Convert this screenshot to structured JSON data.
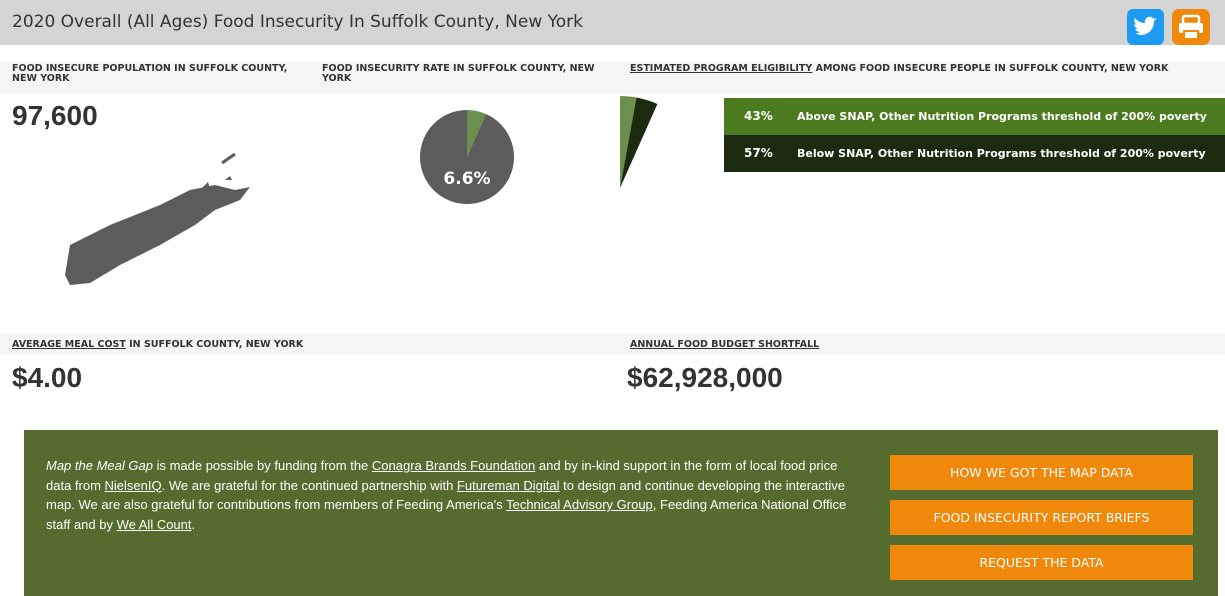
{
  "header": {
    "title": "2020 Overall (All Ages) Food Insecurity In Suffolk County, New York"
  },
  "population": {
    "label": "FOOD INSECURE POPULATION IN SUFFOLK COUNTY, NEW YORK",
    "value": "97,600"
  },
  "rate": {
    "label": "FOOD INSECURITY RATE IN SUFFOLK COUNTY, NEW YORK",
    "value": 6.6,
    "value_label": "6.6%",
    "color": "#6d8f4e",
    "rest_color": "#5c5c5c"
  },
  "eligibility": {
    "label_link": "ESTIMATED PROGRAM ELIGIBILITY",
    "label_rest": " AMONG FOOD INSECURE PEOPLE IN SUFFOLK COUNTY, NEW YORK",
    "rows": [
      {
        "value": 43,
        "value_label": "43%",
        "text": "Above SNAP, Other Nutrition Programs threshold of 200% poverty",
        "color": "#4b7a1f",
        "slice_color": "#6d8f4e"
      },
      {
        "value": 57,
        "value_label": "57%",
        "text": "Below SNAP, Other Nutrition Programs threshold of 200% poverty",
        "color": "#1c2a10",
        "slice_color": "#1c2a10"
      }
    ]
  },
  "meal_cost": {
    "label_link": "AVERAGE MEAL COST",
    "label_rest": " IN SUFFOLK COUNTY, NEW YORK",
    "value": "$4.00"
  },
  "shortfall": {
    "label_link": "ANNUAL FOOD BUDGET SHORTFALL",
    "value": "$62,928,000"
  },
  "footer": {
    "paragraph": [
      {
        "text": "Map the Meal Gap",
        "style": "italic"
      },
      {
        "text": " is made possible by funding from the ",
        "style": "plain"
      },
      {
        "text": "Conagra Brands Foundation",
        "style": "link"
      },
      {
        "text": " and by in-kind support in the form of local food price data from ",
        "style": "plain"
      },
      {
        "text": "NielsenIQ",
        "style": "link"
      },
      {
        "text": ". We are grateful for the continued partnership with ",
        "style": "plain"
      },
      {
        "text": "Futureman Digital",
        "style": "link"
      },
      {
        "text": " to design and continue developing the interactive map. We are also grateful for contributions from members of Feeding America's ",
        "style": "plain"
      },
      {
        "text": "Technical Advisory Group",
        "style": "link"
      },
      {
        "text": ", Feeding America National Office staff and by ",
        "style": "plain"
      },
      {
        "text": "We All Count",
        "style": "link"
      },
      {
        "text": ".",
        "style": "plain"
      }
    ],
    "buttons": [
      "HOW WE GOT THE MAP DATA",
      "FOOD INSECURITY REPORT BRIEFS",
      "REQUEST THE DATA"
    ]
  }
}
